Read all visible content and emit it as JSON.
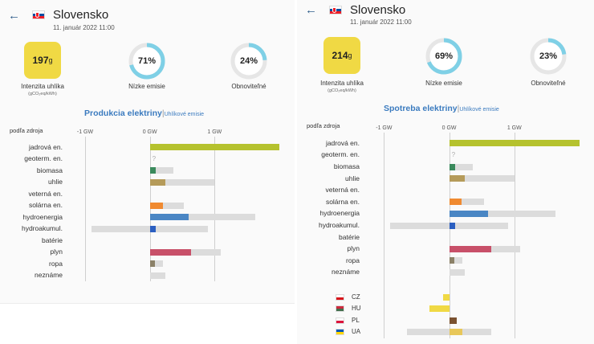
{
  "left": {
    "title": "Slovensko",
    "date": "11. január 2022 11:00",
    "carbon": {
      "value": "197",
      "unit": "g",
      "label": "Intenzita uhlíka",
      "sublabel": "(gCO₂eq/kWh)"
    },
    "low_emission": {
      "value_text": "71%",
      "value": 0.71,
      "label": "Nízke emisie"
    },
    "renewable": {
      "value_text": "24%",
      "value": 0.24,
      "label": "Obnoviteľné"
    },
    "section_title": "Produkcia elektriny",
    "section_alt": "Uhlíkové emisie",
    "source_header": "podľa zdroja",
    "axis": {
      "min_gw": -1,
      "max_gw": 2,
      "ticks": [
        {
          "v": -1,
          "label": "-1 GW"
        },
        {
          "v": 0,
          "label": "0 GW"
        },
        {
          "v": 1,
          "label": "1 GW"
        }
      ]
    },
    "rows": [
      {
        "label": "jadrová en.",
        "value": 2.0,
        "cap": [
          0,
          2.0
        ],
        "color": "#b5c22e"
      },
      {
        "label": "geoterm. en.",
        "value": null,
        "cap": null,
        "color": "#999999",
        "unknown": "?"
      },
      {
        "label": "biomasa",
        "value": 0.09,
        "cap": [
          0,
          0.36
        ],
        "color": "#3a8a5c"
      },
      {
        "label": "uhlie",
        "value": 0.24,
        "cap": [
          0,
          1.0
        ],
        "color": "#b59b5a"
      },
      {
        "label": "veterná en.",
        "value": 0,
        "cap": null,
        "color": "#74c1d9"
      },
      {
        "label": "solárna en.",
        "value": 0.2,
        "cap": [
          0,
          0.53
        ],
        "color": "#f08a30"
      },
      {
        "label": "hydroenergia",
        "value": 0.6,
        "cap": [
          0,
          1.63
        ],
        "color": "#4a86c4"
      },
      {
        "label": "hydroakumul.",
        "value": 0.09,
        "cap": [
          -0.9,
          0.9
        ],
        "color": "#2b5fc1"
      },
      {
        "label": "batérie",
        "value": 0,
        "cap": null,
        "color": "#888888"
      },
      {
        "label": "plyn",
        "value": 0.64,
        "cap": [
          0,
          1.09
        ],
        "color": "#c85069"
      },
      {
        "label": "ropa",
        "value": 0.08,
        "cap": [
          0,
          0.2
        ],
        "color": "#8b8168"
      },
      {
        "label": "neznáme",
        "value": 0,
        "cap": [
          0,
          0.24
        ],
        "color": "#aaaaaa"
      }
    ]
  },
  "right": {
    "title": "Slovensko",
    "date": "11. január 2022 11:00",
    "carbon": {
      "value": "214",
      "unit": "g",
      "label": "Intenzita uhlíka",
      "sublabel": "(gCO₂eq/kWh)"
    },
    "low_emission": {
      "value_text": "69%",
      "value": 0.69,
      "label": "Nízke emisie"
    },
    "renewable": {
      "value_text": "23%",
      "value": 0.23,
      "label": "Obnoviteľné"
    },
    "section_title": "Spotreba elektriny",
    "section_alt": "Uhlíkové emisie",
    "source_header": "podľa zdroja",
    "axis": {
      "min_gw": -1.3,
      "max_gw": 2.0,
      "ticks": [
        {
          "v": -1,
          "label": "-1 GW"
        },
        {
          "v": 0,
          "label": "0 GW"
        },
        {
          "v": 1,
          "label": "1 GW"
        }
      ]
    },
    "rows": [
      {
        "label": "jadrová en.",
        "value": 2.0,
        "cap": [
          0,
          2.0
        ],
        "color": "#b5c22e"
      },
      {
        "label": "geoterm. en.",
        "value": null,
        "cap": null,
        "color": "#999999",
        "unknown": "?"
      },
      {
        "label": "biomasa",
        "value": 0.09,
        "cap": [
          0,
          0.36
        ],
        "color": "#3a8a5c"
      },
      {
        "label": "uhlie",
        "value": 0.24,
        "cap": [
          0,
          1.0
        ],
        "color": "#b59b5a"
      },
      {
        "label": "veterná en.",
        "value": 0,
        "cap": null,
        "color": "#74c1d9"
      },
      {
        "label": "solárna en.",
        "value": 0.19,
        "cap": [
          0,
          0.53
        ],
        "color": "#f08a30"
      },
      {
        "label": "hydroenergia",
        "value": 0.6,
        "cap": [
          0,
          1.63
        ],
        "color": "#4a86c4"
      },
      {
        "label": "hydroakumul.",
        "value": 0.09,
        "cap": [
          -0.9,
          0.9
        ],
        "color": "#2b5fc1"
      },
      {
        "label": "batérie",
        "value": 0,
        "cap": null,
        "color": "#888888"
      },
      {
        "label": "plyn",
        "value": 0.64,
        "cap": [
          0,
          1.09
        ],
        "color": "#c85069"
      },
      {
        "label": "ropa",
        "value": 0.08,
        "cap": [
          0,
          0.2
        ],
        "color": "#8b8168"
      },
      {
        "label": "neznáme",
        "value": 0,
        "cap": [
          0,
          0.24
        ],
        "color": "#aaaaaa"
      }
    ],
    "exchanges": [
      {
        "label": "CZ",
        "value": -0.09,
        "cap": null,
        "color": "#f0d944",
        "flag": [
          "#ffffff",
          "#d7141a"
        ]
      },
      {
        "label": "HU",
        "value": -0.3,
        "cap": null,
        "color": "#f0d944",
        "flag": [
          "#cd2a3e",
          "#436f4d"
        ]
      },
      {
        "label": "PL",
        "value": 0.12,
        "cap": null,
        "color": "#7a5230",
        "flag": [
          "#ffffff",
          "#dc143c"
        ]
      },
      {
        "label": "UA",
        "value": 0.2,
        "cap": [
          -0.65,
          0.65
        ],
        "color": "#e8c75a",
        "flag": [
          "#0057b7",
          "#ffd700"
        ]
      }
    ]
  }
}
